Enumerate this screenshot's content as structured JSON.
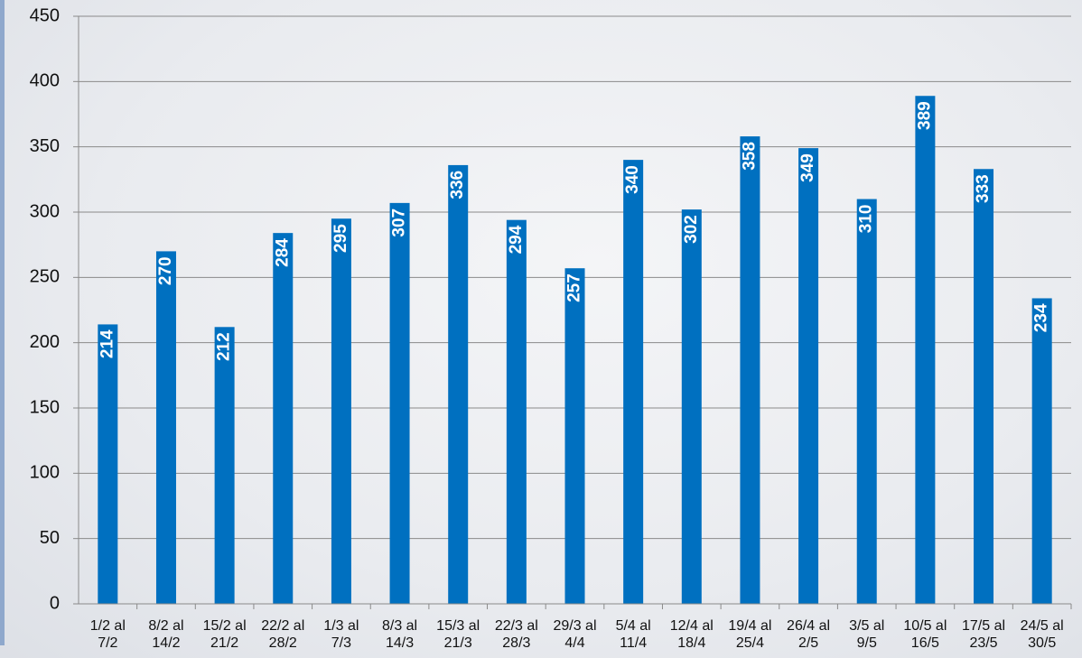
{
  "chart_data": {
    "type": "bar",
    "categories": [
      "1/2 al 7/2",
      "8/2 al 14/2",
      "15/2 al 21/2",
      "22/2 al 28/2",
      "1/3 al 7/3",
      "8/3 al 14/3",
      "15/3 al 21/3",
      "22/3 al 28/3",
      "29/3 al 4/4",
      "5/4 al 11/4",
      "12/4 al 18/4",
      "19/4 al 25/4",
      "26/4 al 2/5",
      "3/5 al 9/5",
      "10/5 al 16/5",
      "17/5 al 23/5",
      "24/5 al 30/5"
    ],
    "values": [
      214,
      270,
      212,
      284,
      295,
      307,
      336,
      294,
      257,
      340,
      302,
      358,
      349,
      310,
      389,
      333,
      234
    ],
    "color": "#0070c0",
    "ylim": [
      0,
      450
    ],
    "yticks": [
      0,
      50,
      100,
      150,
      200,
      250,
      300,
      350,
      400,
      450
    ],
    "grid": true
  }
}
